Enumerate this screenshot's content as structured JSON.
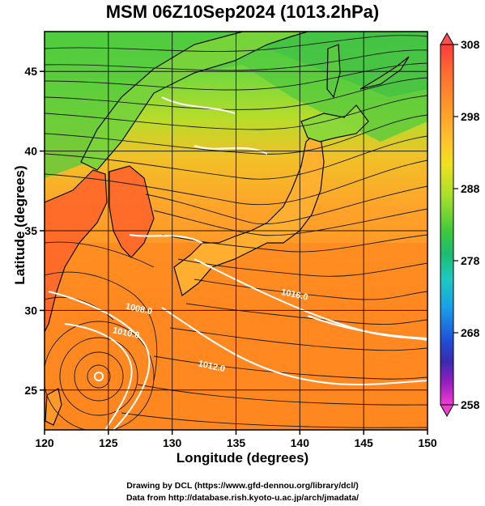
{
  "title": "MSM 06Z10Sep2024 (1013.2hPa)",
  "xlabel": "Longitude (degrees)",
  "ylabel": "Latitude  (degrees)",
  "credit_line1": "Drawing by DCL (https://www.gfd-dennou.org/library/dcl/)",
  "credit_line2": "Data from http://database.rish.kyoto-u.ac.jp/arch/jmadata/",
  "map": {
    "lon_range": [
      120,
      150
    ],
    "lat_range": [
      22.5,
      47.5
    ],
    "lon_ticks": [
      "120",
      "125",
      "130",
      "135",
      "140",
      "145",
      "150"
    ],
    "lat_ticks": [
      "25",
      "30",
      "35",
      "40",
      "45"
    ],
    "field": "temperature shading with surface wind streamlines and pressure contours",
    "typhoon_center": {
      "lon": 124.2,
      "lat": 26.6
    },
    "contour_labels": [
      {
        "text": "1008.0",
        "lon": 126.3,
        "lat": 30.1
      },
      {
        "text": "1010.0",
        "lon": 125.3,
        "lat": 28.6
      },
      {
        "text": "1012.0",
        "lon": 132.0,
        "lat": 26.5
      },
      {
        "text": "1016.0",
        "lon": 138.5,
        "lat": 31.0
      }
    ]
  },
  "colorbar": {
    "ticks": [
      "308",
      "298",
      "288",
      "278",
      "268",
      "258"
    ],
    "colors": [
      "#ff5a5a",
      "#ff8a2a",
      "#ffb02a",
      "#f0dc20",
      "#b6e22a",
      "#55d23a",
      "#17b84a",
      "#1ec8a8",
      "#18a8e8",
      "#1f5ae0",
      "#2f2fb8",
      "#6a1fb8",
      "#b01ec0",
      "#e63ad0"
    ]
  }
}
